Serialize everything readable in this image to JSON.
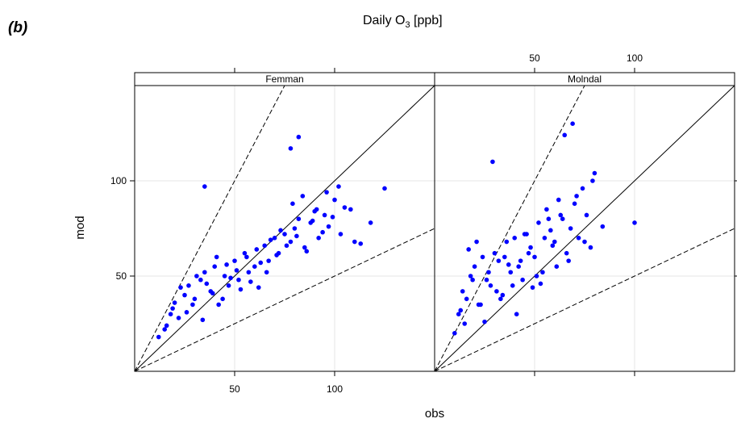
{
  "panel_label": "(b)",
  "title": {
    "main": "Daily O",
    "sub": "3",
    "unit": " [ppb]"
  },
  "chart_data": {
    "type": "scatter",
    "title": "Daily O3 [ppb]",
    "xlabel": "obs",
    "ylabel": "mod",
    "xlim": [
      0,
      150
    ],
    "ylim": [
      0,
      150
    ],
    "x_ticks": [
      50,
      100
    ],
    "y_ticks": [
      50,
      100
    ],
    "grid": true,
    "reference_lines": [
      {
        "slope": 1,
        "style": "solid"
      },
      {
        "slope": 2,
        "style": "dashed"
      },
      {
        "slope": 0.5,
        "style": "dashed"
      }
    ],
    "point_color": "#0000ff",
    "series": [
      {
        "name": "Femman",
        "x": [
          12,
          15,
          18,
          20,
          22,
          25,
          27,
          30,
          33,
          35,
          38,
          40,
          42,
          45,
          47,
          50,
          52,
          55,
          57,
          60,
          62,
          65,
          67,
          70,
          72,
          75,
          78,
          80,
          82,
          85,
          88,
          90,
          92,
          95,
          97,
          100,
          103,
          105,
          110,
          125,
          16,
          19,
          23,
          26,
          29,
          31,
          34,
          36,
          39,
          41,
          44,
          46,
          48,
          51,
          53,
          56,
          58,
          61,
          63,
          66,
          68,
          71,
          73,
          76,
          79,
          81,
          84,
          86,
          89,
          91,
          94,
          96,
          99,
          102,
          108,
          113,
          118,
          35,
          78,
          82
        ],
        "y": [
          18,
          22,
          30,
          36,
          28,
          40,
          45,
          38,
          48,
          52,
          42,
          55,
          35,
          50,
          45,
          58,
          48,
          62,
          52,
          55,
          44,
          66,
          58,
          70,
          62,
          72,
          68,
          75,
          80,
          65,
          78,
          84,
          70,
          82,
          76,
          90,
          72,
          86,
          68,
          96,
          24,
          33,
          44,
          31,
          35,
          50,
          27,
          46,
          41,
          60,
          38,
          56,
          49,
          53,
          43,
          60,
          47,
          64,
          57,
          52,
          69,
          61,
          74,
          66,
          88,
          71,
          92,
          63,
          79,
          85,
          73,
          94,
          81,
          97,
          85,
          67,
          78,
          97,
          117,
          123
        ]
      },
      {
        "name": "Molndal",
        "x": [
          10,
          12,
          14,
          16,
          18,
          20,
          22,
          24,
          26,
          28,
          30,
          32,
          34,
          36,
          38,
          40,
          42,
          44,
          46,
          48,
          50,
          52,
          54,
          56,
          58,
          60,
          62,
          64,
          66,
          68,
          70,
          72,
          74,
          76,
          78,
          80,
          84,
          100,
          15,
          19,
          23,
          27,
          31,
          35,
          39,
          43,
          47,
          51,
          55,
          59,
          63,
          67,
          71,
          75,
          79,
          29,
          41,
          53,
          61,
          65,
          69,
          33,
          45,
          57,
          49,
          37,
          25,
          21,
          17,
          13
        ],
        "y": [
          20,
          30,
          42,
          38,
          50,
          55,
          35,
          60,
          48,
          45,
          62,
          58,
          40,
          68,
          52,
          70,
          55,
          48,
          72,
          65,
          60,
          78,
          52,
          85,
          74,
          68,
          90,
          80,
          62,
          75,
          88,
          70,
          96,
          82,
          65,
          104,
          76,
          78,
          25,
          48,
          35,
          52,
          42,
          60,
          45,
          58,
          62,
          50,
          70,
          66,
          82,
          58,
          92,
          68,
          100,
          110,
          30,
          46,
          55,
          124,
          130,
          38,
          72,
          80,
          44,
          56,
          26,
          68,
          64,
          32
        ]
      }
    ]
  }
}
